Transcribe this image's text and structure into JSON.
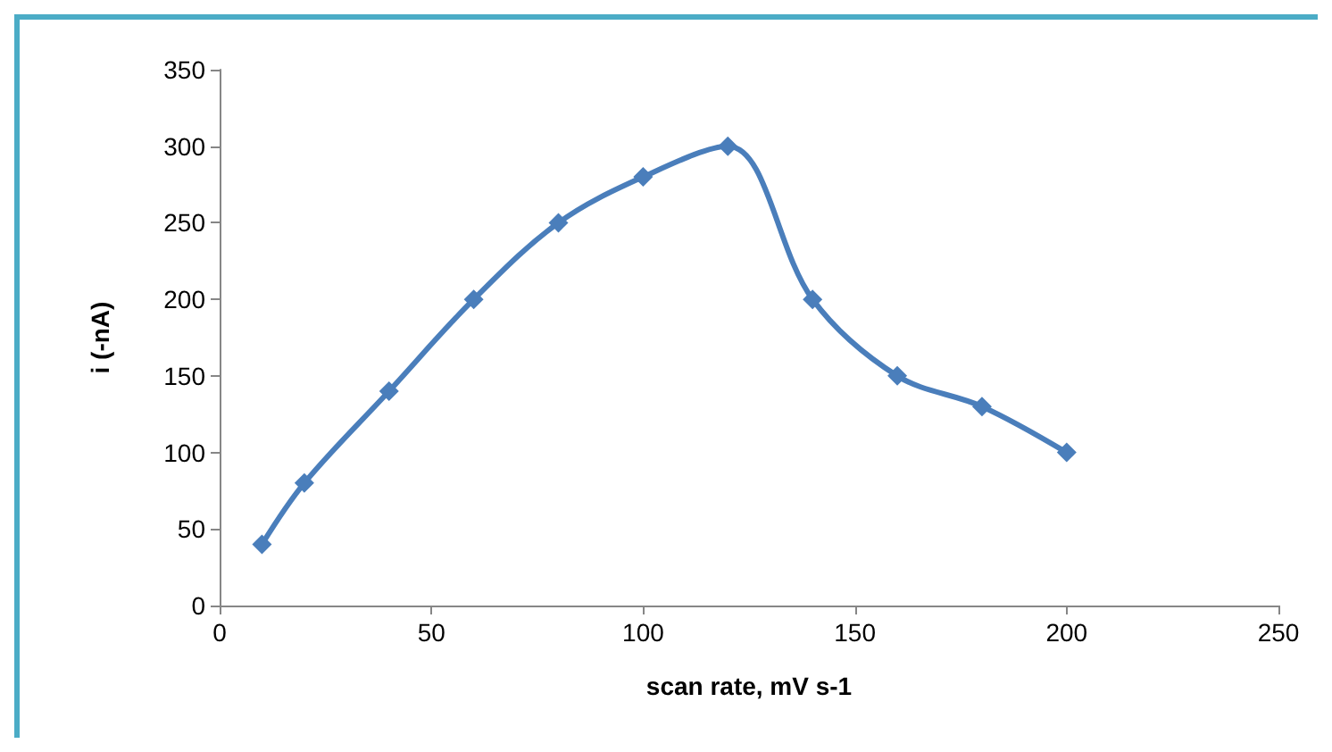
{
  "chart_data": {
    "type": "line",
    "xlabel": "scan rate, mV s-1",
    "ylabel": "i (-nA)",
    "x": [
      10,
      20,
      40,
      60,
      80,
      100,
      120,
      140,
      160,
      180,
      200
    ],
    "series": [
      {
        "color": "#4a7ebb",
        "values": [
          40,
          80,
          140,
          200,
          250,
          280,
          300,
          200,
          150,
          130,
          100
        ]
      }
    ],
    "xlim": [
      0,
      250
    ],
    "xticks": [
      0,
      50,
      100,
      150,
      200,
      250
    ],
    "ylim": [
      0,
      350
    ],
    "yticks": [
      0,
      50,
      100,
      150,
      200,
      250,
      300,
      350
    ],
    "grid": false,
    "marker": "diamond",
    "line_style": "solid"
  }
}
